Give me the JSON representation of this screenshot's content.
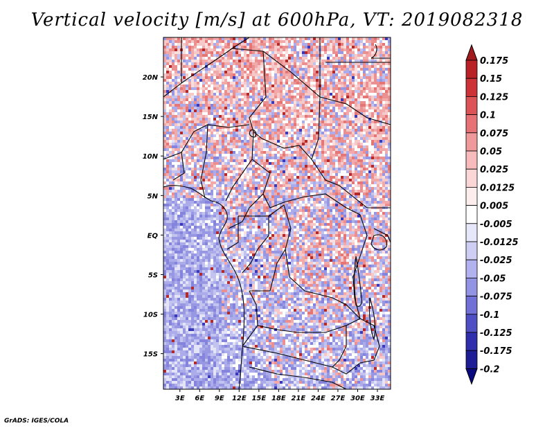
{
  "title": "Vertical velocity [m/s] at 600hPa, VT: 2019082318",
  "credit": "GrADS: IGES/COLA",
  "map": {
    "lat_labels": [
      "20N",
      "15N",
      "10N",
      "5N",
      "EQ",
      "5S",
      "10S",
      "15S"
    ],
    "lat_values": [
      20,
      15,
      10,
      5,
      0,
      -5,
      -10,
      -15
    ],
    "lon_labels": [
      "3E",
      "6E",
      "9E",
      "12E",
      "15E",
      "18E",
      "21E",
      "24E",
      "27E",
      "30E",
      "33E"
    ],
    "lon_values": [
      3,
      6,
      9,
      12,
      15,
      18,
      21,
      24,
      27,
      30,
      33
    ],
    "lon_range": [
      0.5,
      35
    ],
    "lat_range": [
      -19.5,
      25
    ]
  },
  "colorbar": {
    "labels": [
      "0.175",
      "0.15",
      "0.125",
      "0.1",
      "0.075",
      "0.05",
      "0.025",
      "0.0125",
      "0.005",
      "-0.005",
      "-0.0125",
      "-0.025",
      "-0.05",
      "-0.075",
      "-0.1",
      "-0.125",
      "-0.175",
      "-0.2"
    ],
    "colors": [
      "#a11a1e",
      "#b82126",
      "#cc3337",
      "#dc5456",
      "#e77275",
      "#f0999a",
      "#f8bbbb",
      "#fbd6d6",
      "#fdeeee",
      "#ffffff",
      "#e7e7fb",
      "#ceceF5",
      "#b2b2ee",
      "#9393e4",
      "#7070d6",
      "#4f4fc4",
      "#2f2fad",
      "#1d1d96",
      "#0a0a80"
    ]
  },
  "colors": {
    "positive": "#e05555",
    "negative": "#6060d8",
    "border": "#000000"
  }
}
